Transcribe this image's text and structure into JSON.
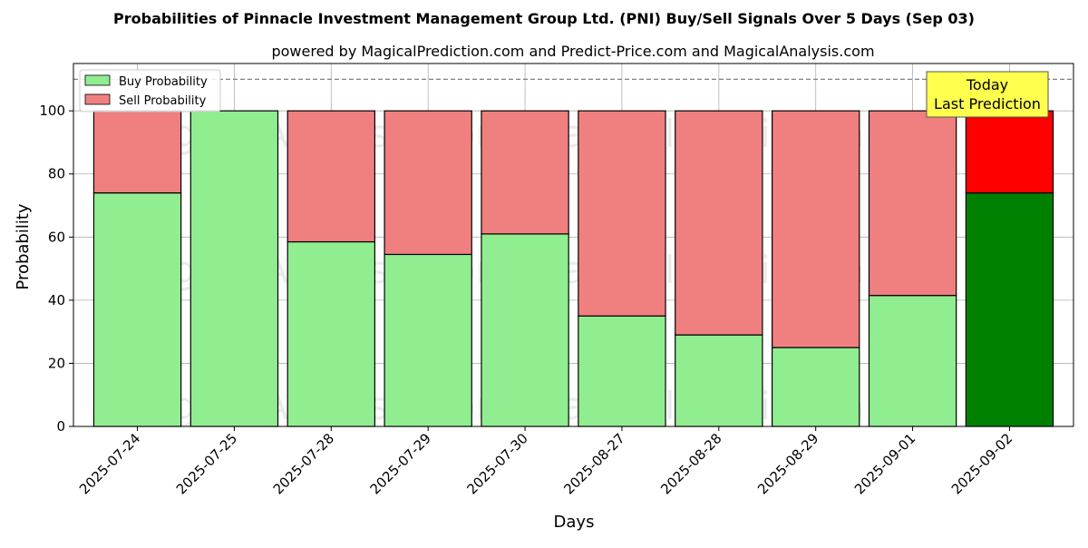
{
  "chart_data": {
    "type": "bar",
    "stacked": true,
    "title": "Probabilities of Pinnacle Investment Management Group Ltd. (PNI) Buy/Sell Signals Over 5 Days (Sep 03)",
    "subtitle": "powered by MagicalPrediction.com and Predict-Price.com and MagicalAnalysis.com",
    "xlabel": "Days",
    "ylabel": "Probability",
    "ylim": [
      0,
      115
    ],
    "yticks": [
      0,
      20,
      40,
      60,
      80,
      100
    ],
    "grid": true,
    "reference_line": 110,
    "legend_placement": "top-left",
    "categories": [
      "2025-07-24",
      "2025-07-25",
      "2025-07-28",
      "2025-07-29",
      "2025-07-30",
      "2025-08-27",
      "2025-08-28",
      "2025-08-29",
      "2025-09-01",
      "2025-09-02"
    ],
    "series": [
      {
        "name": "Buy Probability",
        "values": [
          74,
          100,
          58.5,
          54.5,
          61,
          35,
          29,
          25,
          41.5,
          74
        ],
        "color": "#90ee90",
        "highlight_color": "#008000"
      },
      {
        "name": "Sell Probability",
        "values": [
          26,
          0,
          41.5,
          45.5,
          39,
          65,
          71,
          75,
          58.5,
          26
        ],
        "color": "#f08080",
        "highlight_color": "#ff0000"
      }
    ],
    "highlight_index": 9,
    "annotation": {
      "line1": "Today",
      "line2": "Last Prediction",
      "background": "#ffff4d"
    },
    "watermarks": [
      "MagicalAnalysis.com",
      "MagicalPrediction.com"
    ]
  }
}
